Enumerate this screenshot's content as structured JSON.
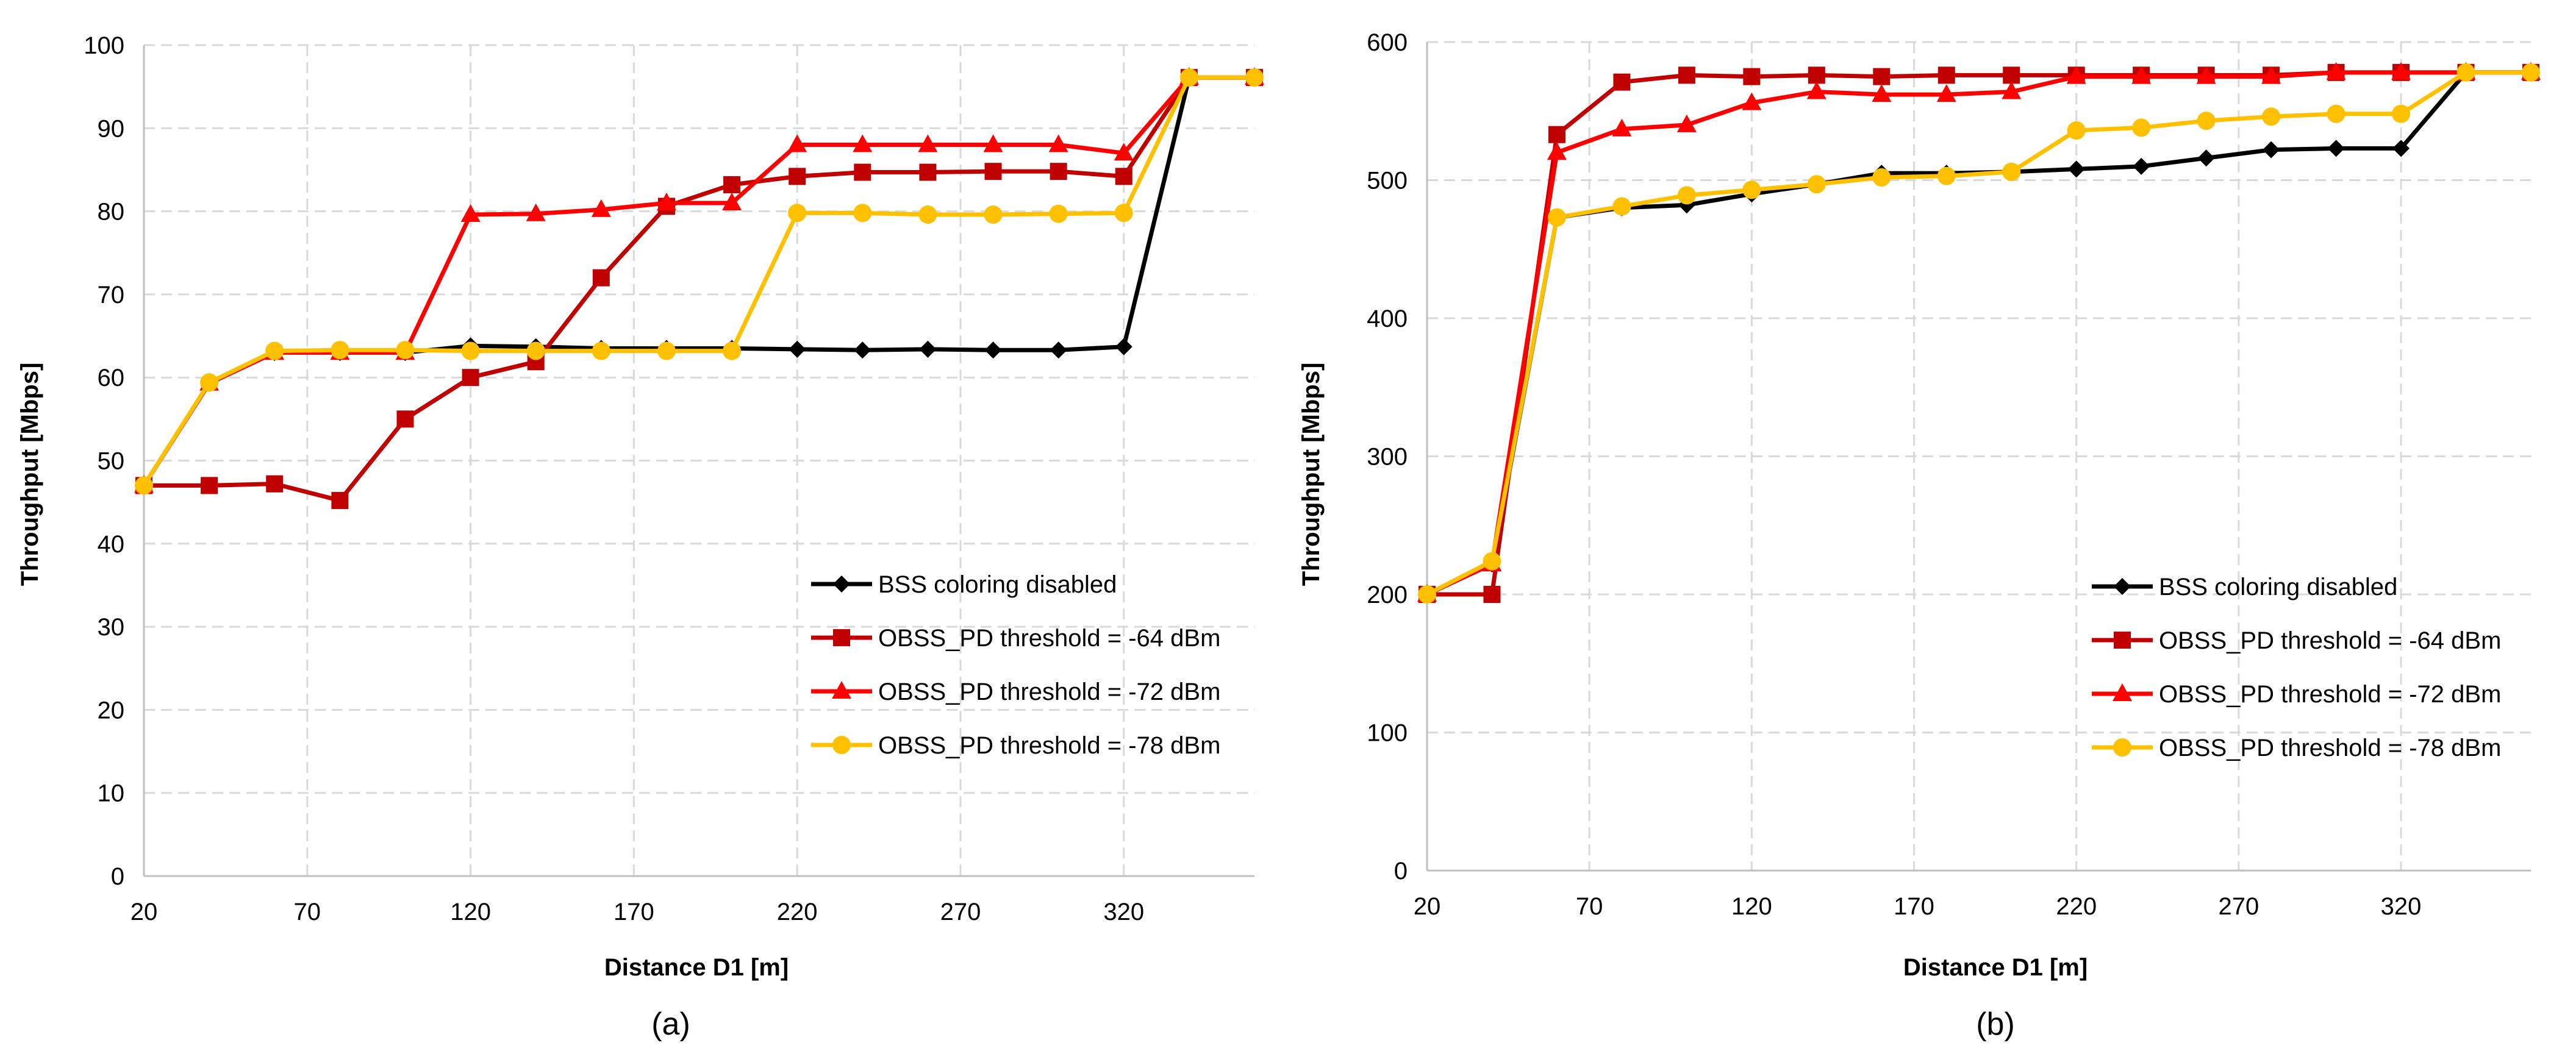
{
  "colors": {
    "bss_disabled": "#000000",
    "obss_64": "#C00000",
    "obss_72": "#FF0000",
    "obss_78": "#FFC000",
    "grid": "#D9D9D9",
    "axis": "#BFBFBF",
    "text": "#000000"
  },
  "chart_data": [
    {
      "type": "line",
      "panel_label": "(a)",
      "xlabel": "Distance D1 [m]",
      "ylabel": "Throughput [Mbps]",
      "xlim": [
        20,
        360
      ],
      "ylim": [
        0,
        100
      ],
      "xticks": [
        20,
        70,
        120,
        170,
        220,
        270,
        320
      ],
      "yticks": [
        0,
        10,
        20,
        30,
        40,
        50,
        60,
        70,
        80,
        90,
        100
      ],
      "grid": true,
      "legend_position": "bottom-right",
      "x": [
        20,
        40,
        60,
        80,
        100,
        120,
        140,
        160,
        180,
        200,
        220,
        240,
        260,
        280,
        300,
        320,
        340,
        360
      ],
      "series": [
        {
          "name": "BSS coloring disabled",
          "color_key": "bss_disabled",
          "marker": "diamond",
          "values": [
            47,
            59.3,
            63,
            63,
            63,
            63.8,
            63.7,
            63.5,
            63.5,
            63.5,
            63.4,
            63.3,
            63.4,
            63.3,
            63.3,
            63.7,
            96.1,
            96.1
          ]
        },
        {
          "name": "OBSS_PD threshold = -64 dBm",
          "color_key": "obss_64",
          "marker": "square",
          "values": [
            47,
            47,
            47.2,
            45.2,
            55,
            60,
            61.9,
            72,
            80.6,
            83.2,
            84.2,
            84.7,
            84.7,
            84.8,
            84.8,
            84.2,
            96.1,
            96.1
          ]
        },
        {
          "name": "OBSS_PD threshold = -72 dBm",
          "color_key": "obss_72",
          "marker": "triangle",
          "values": [
            47,
            59.3,
            63,
            63,
            63,
            79.6,
            79.7,
            80.2,
            81,
            81,
            88,
            88,
            88,
            88,
            88,
            87,
            96.1,
            96.1
          ]
        },
        {
          "name": "OBSS_PD threshold = -78 dBm",
          "color_key": "obss_78",
          "marker": "circle",
          "values": [
            47,
            59.4,
            63.2,
            63.3,
            63.3,
            63.2,
            63.2,
            63.2,
            63.2,
            63.2,
            79.8,
            79.8,
            79.6,
            79.6,
            79.7,
            79.8,
            96.1,
            96.1
          ]
        }
      ]
    },
    {
      "type": "line",
      "panel_label": "(b)",
      "xlabel": "Distance D1 [m]",
      "ylabel": "Throughput [Mbps]",
      "xlim": [
        20,
        360
      ],
      "ylim": [
        0,
        600
      ],
      "xticks": [
        20,
        70,
        120,
        170,
        220,
        270,
        320
      ],
      "yticks": [
        0,
        100,
        200,
        300,
        400,
        500,
        600
      ],
      "grid": true,
      "legend_position": "bottom-right",
      "x": [
        20,
        40,
        60,
        80,
        100,
        120,
        140,
        160,
        180,
        200,
        220,
        240,
        260,
        280,
        300,
        320,
        340,
        360
      ],
      "series": [
        {
          "name": "BSS coloring disabled",
          "color_key": "bss_disabled",
          "marker": "diamond",
          "values": [
            200,
            222,
            473,
            480,
            482,
            490,
            497,
            505,
            505,
            506,
            508,
            510,
            516,
            522,
            523,
            523,
            578,
            578
          ]
        },
        {
          "name": "OBSS_PD threshold = -64 dBm",
          "color_key": "obss_64",
          "marker": "square",
          "values": [
            200,
            200,
            533,
            571,
            576,
            575,
            576,
            575,
            576,
            576,
            576,
            576,
            576,
            576,
            578,
            578,
            578,
            578
          ]
        },
        {
          "name": "OBSS_PD threshold = -72 dBm",
          "color_key": "obss_72",
          "marker": "triangle",
          "values": [
            200,
            222,
            520,
            537,
            540,
            556,
            564,
            562,
            562,
            564,
            575,
            575,
            575,
            575,
            578,
            578,
            578,
            578
          ]
        },
        {
          "name": "OBSS_PD threshold = -78 dBm",
          "color_key": "obss_78",
          "marker": "circle",
          "values": [
            200,
            224,
            473,
            481,
            489,
            493,
            497,
            502,
            503,
            506,
            536,
            538,
            543,
            546,
            548,
            548,
            578,
            578
          ]
        }
      ]
    }
  ]
}
